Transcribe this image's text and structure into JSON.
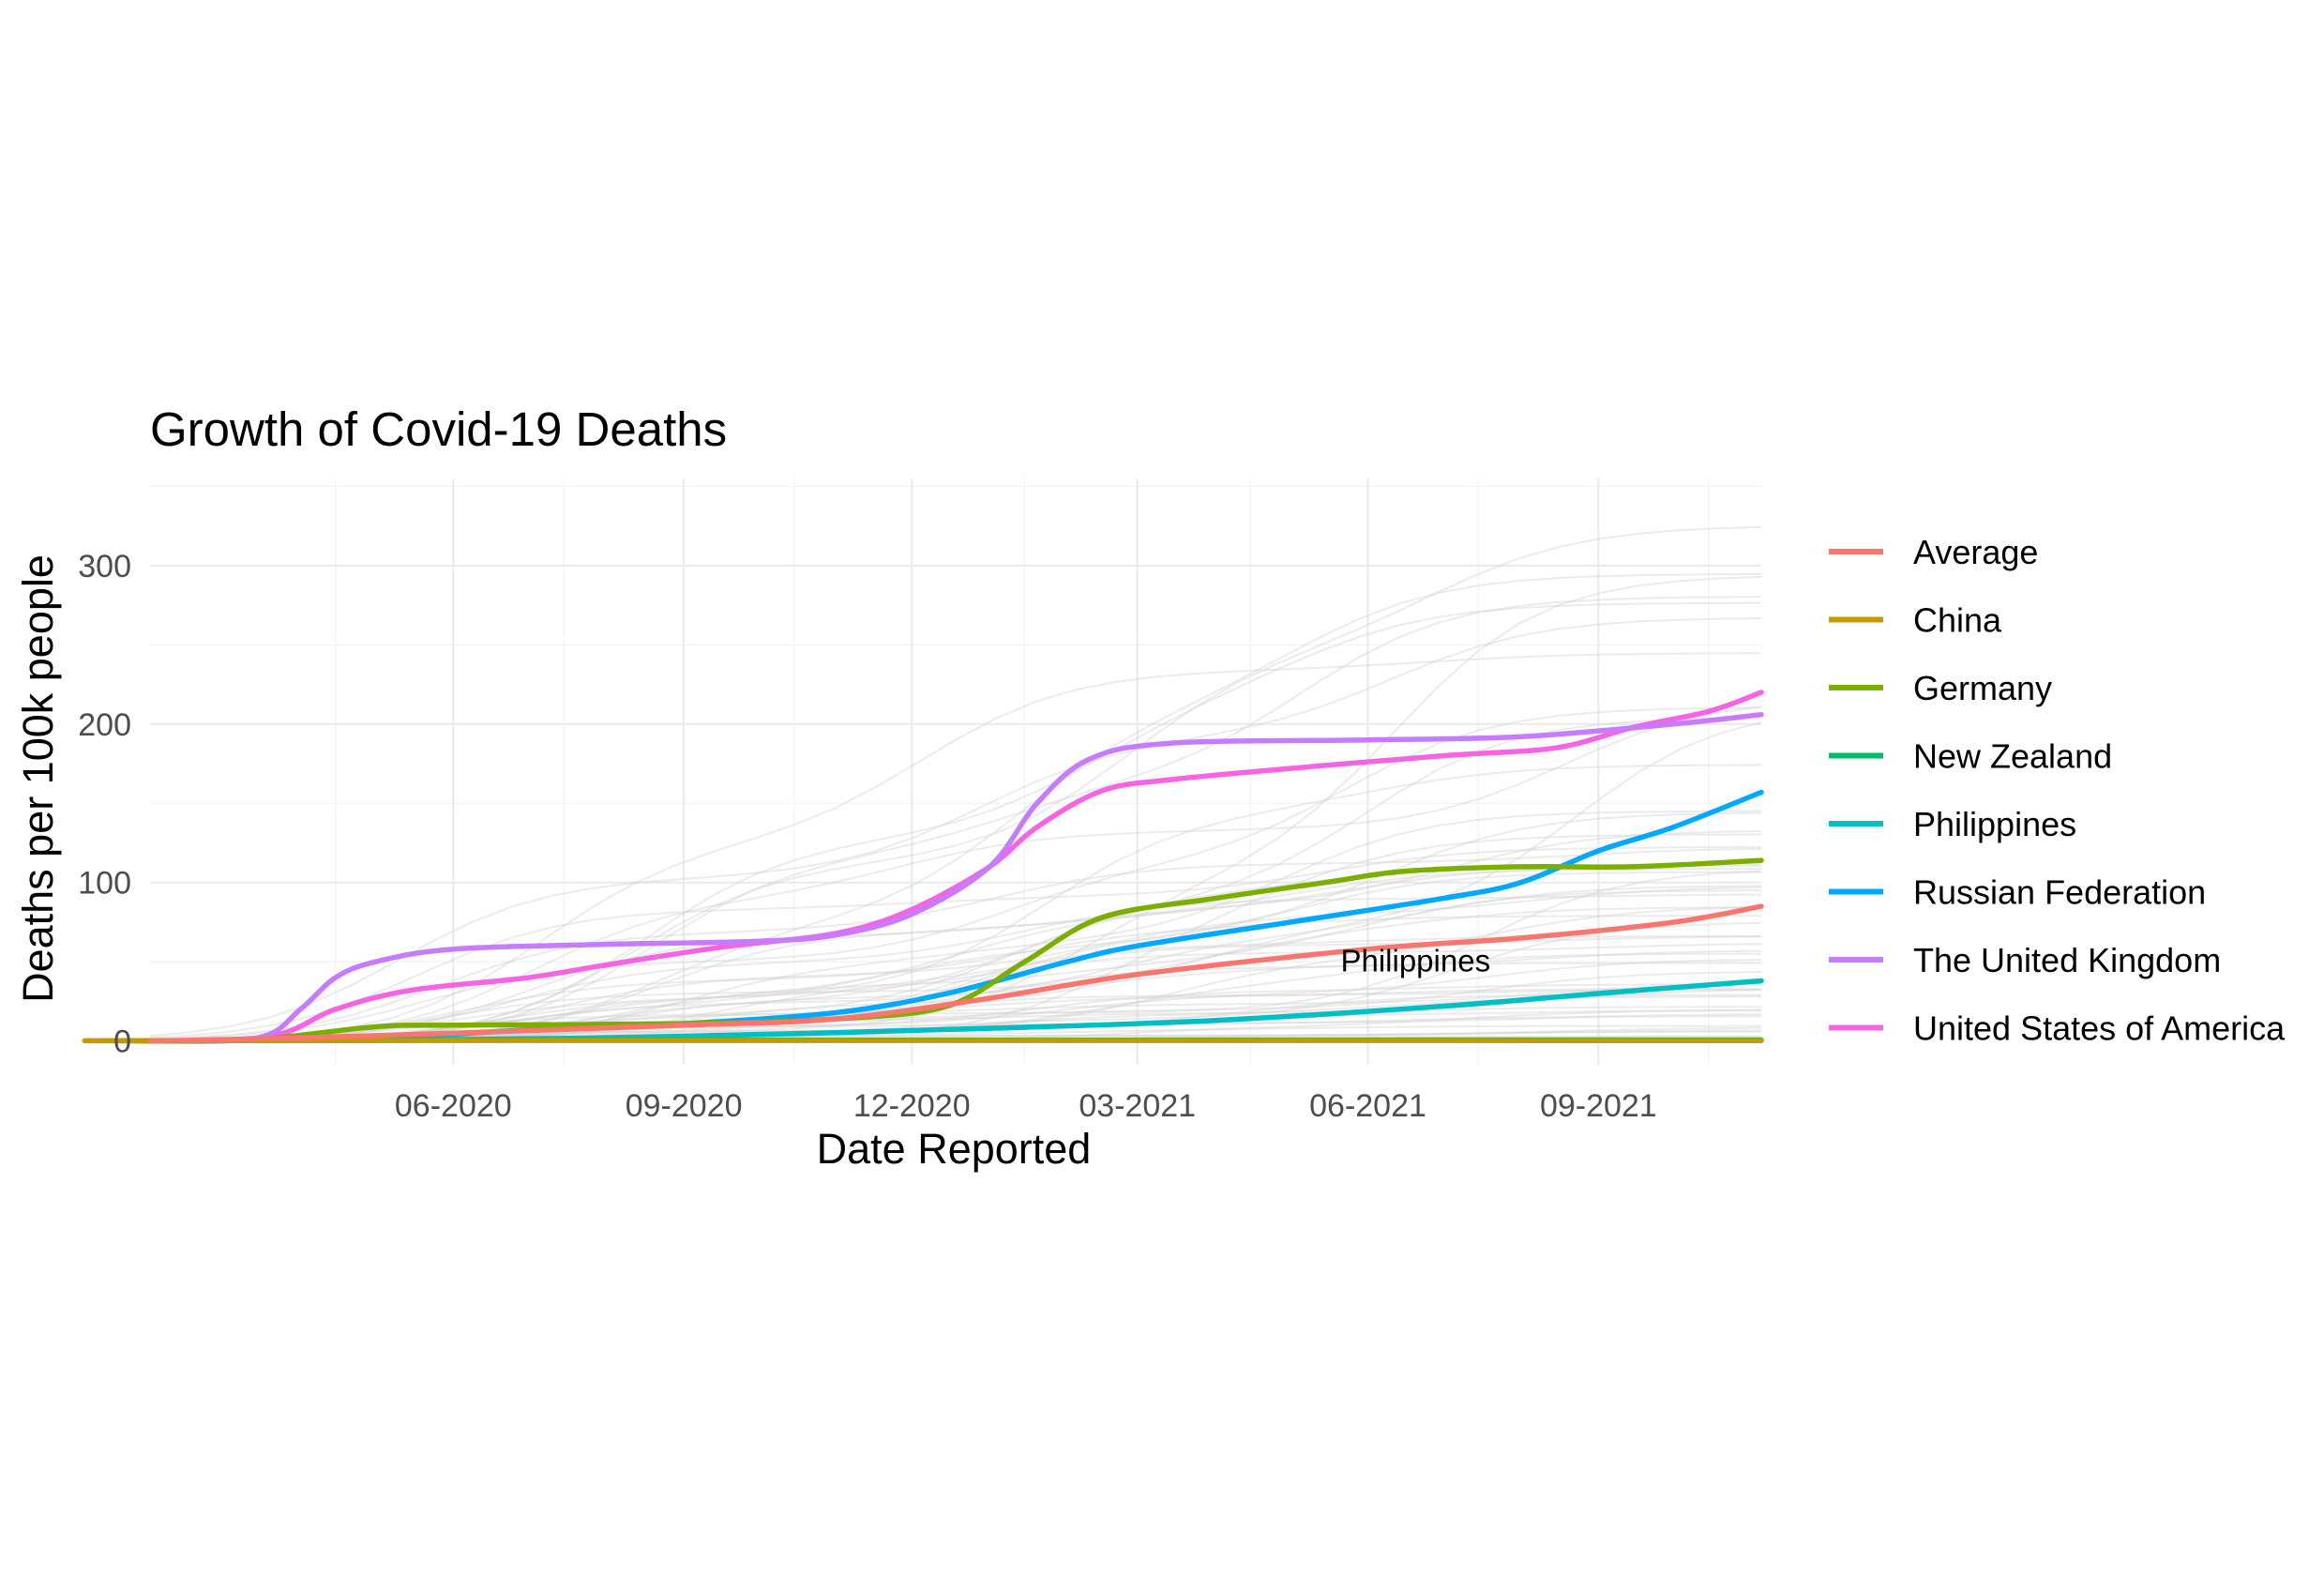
{
  "chart_data": {
    "type": "line",
    "title": "Growth of Covid-19 Deaths",
    "xlabel": "Date Reported",
    "ylabel": "Deaths per 100k people",
    "x_ticks": [
      "06-2020",
      "09-2020",
      "12-2020",
      "03-2021",
      "06-2021",
      "09-2021"
    ],
    "y_ticks": [
      "0",
      "100",
      "200",
      "300"
    ],
    "xlim": [
      "2020-02-01",
      "2021-11-05"
    ],
    "ylim": [
      -15,
      355
    ],
    "grid": true,
    "legend_position": "right",
    "background_series_count": 60,
    "annotations": [
      {
        "text": "Philippines",
        "x": "2021-06-20",
        "y": 38
      }
    ],
    "series": [
      {
        "name": "Average",
        "color": "#F8766D",
        "points": [
          [
            "2020-02-01",
            0
          ],
          [
            "2020-04-01",
            2
          ],
          [
            "2020-06-01",
            5
          ],
          [
            "2020-09-01",
            10
          ],
          [
            "2020-11-01",
            14
          ],
          [
            "2021-01-01",
            27
          ],
          [
            "2021-03-01",
            42
          ],
          [
            "2021-06-01",
            58
          ],
          [
            "2021-08-01",
            65
          ],
          [
            "2021-10-01",
            75
          ],
          [
            "2021-11-05",
            85
          ]
        ]
      },
      {
        "name": "China",
        "color": "#C49A00",
        "points": [
          [
            "2020-02-01",
            0
          ],
          [
            "2020-03-01",
            0.3
          ],
          [
            "2021-11-05",
            0.3
          ]
        ]
      },
      {
        "name": "Germany",
        "color": "#7CAE00",
        "points": [
          [
            "2020-02-01",
            0
          ],
          [
            "2020-03-15",
            1
          ],
          [
            "2020-05-01",
            9
          ],
          [
            "2020-06-01",
            10
          ],
          [
            "2020-09-01",
            11
          ],
          [
            "2020-11-01",
            14
          ],
          [
            "2020-12-15",
            22
          ],
          [
            "2021-01-15",
            50
          ],
          [
            "2021-02-15",
            78
          ],
          [
            "2021-04-01",
            90
          ],
          [
            "2021-05-15",
            100
          ],
          [
            "2021-06-15",
            107
          ],
          [
            "2021-08-01",
            110
          ],
          [
            "2021-09-15",
            110
          ],
          [
            "2021-11-05",
            114
          ]
        ]
      },
      {
        "name": "New Zealand",
        "color": "#00BE67",
        "points": [
          [
            "2020-02-01",
            0
          ],
          [
            "2020-05-01",
            0.5
          ],
          [
            "2021-11-05",
            0.6
          ]
        ]
      },
      {
        "name": "Philippines",
        "color": "#00BFC4",
        "points": [
          [
            "2020-02-01",
            0
          ],
          [
            "2020-06-01",
            1
          ],
          [
            "2020-09-01",
            3
          ],
          [
            "2021-01-01",
            8
          ],
          [
            "2021-04-01",
            13
          ],
          [
            "2021-07-01",
            22
          ],
          [
            "2021-09-01",
            30
          ],
          [
            "2021-11-05",
            38
          ]
        ]
      },
      {
        "name": "Russian Federation",
        "color": "#00A9FF",
        "points": [
          [
            "2020-02-01",
            0
          ],
          [
            "2020-05-01",
            2
          ],
          [
            "2020-07-01",
            7
          ],
          [
            "2020-09-01",
            11
          ],
          [
            "2020-11-01",
            18
          ],
          [
            "2020-12-15",
            30
          ],
          [
            "2021-02-01",
            50
          ],
          [
            "2021-03-01",
            60
          ],
          [
            "2021-05-01",
            75
          ],
          [
            "2021-07-01",
            90
          ],
          [
            "2021-08-01",
            100
          ],
          [
            "2021-09-01",
            120
          ],
          [
            "2021-10-01",
            135
          ],
          [
            "2021-11-05",
            157
          ]
        ]
      },
      {
        "name": "The United Kingdom",
        "color": "#C77CFF",
        "points": [
          [
            "2020-02-01",
            0
          ],
          [
            "2020-03-15",
            2
          ],
          [
            "2020-04-01",
            20
          ],
          [
            "2020-04-15",
            40
          ],
          [
            "2020-05-01",
            50
          ],
          [
            "2020-06-01",
            58
          ],
          [
            "2020-08-01",
            61
          ],
          [
            "2020-10-01",
            63
          ],
          [
            "2020-11-01",
            67
          ],
          [
            "2020-12-01",
            80
          ],
          [
            "2021-01-01",
            110
          ],
          [
            "2021-01-20",
            150
          ],
          [
            "2021-02-10",
            178
          ],
          [
            "2021-03-15",
            188
          ],
          [
            "2021-06-01",
            190
          ],
          [
            "2021-08-01",
            192
          ],
          [
            "2021-10-01",
            200
          ],
          [
            "2021-11-05",
            206
          ]
        ]
      },
      {
        "name": "United States of America",
        "color": "#F564E3",
        "points": [
          [
            "2020-02-01",
            0
          ],
          [
            "2020-03-20",
            3
          ],
          [
            "2020-04-15",
            20
          ],
          [
            "2020-05-15",
            32
          ],
          [
            "2020-07-01",
            40
          ],
          [
            "2020-08-01",
            48
          ],
          [
            "2020-09-15",
            59
          ],
          [
            "2020-11-01",
            68
          ],
          [
            "2020-12-01",
            83
          ],
          [
            "2021-01-01",
            110
          ],
          [
            "2021-01-20",
            135
          ],
          [
            "2021-02-15",
            158
          ],
          [
            "2021-03-15",
            165
          ],
          [
            "2021-05-01",
            172
          ],
          [
            "2021-07-01",
            180
          ],
          [
            "2021-08-15",
            185
          ],
          [
            "2021-09-15",
            198
          ],
          [
            "2021-10-15",
            208
          ],
          [
            "2021-11-05",
            220
          ]
        ]
      }
    ]
  }
}
